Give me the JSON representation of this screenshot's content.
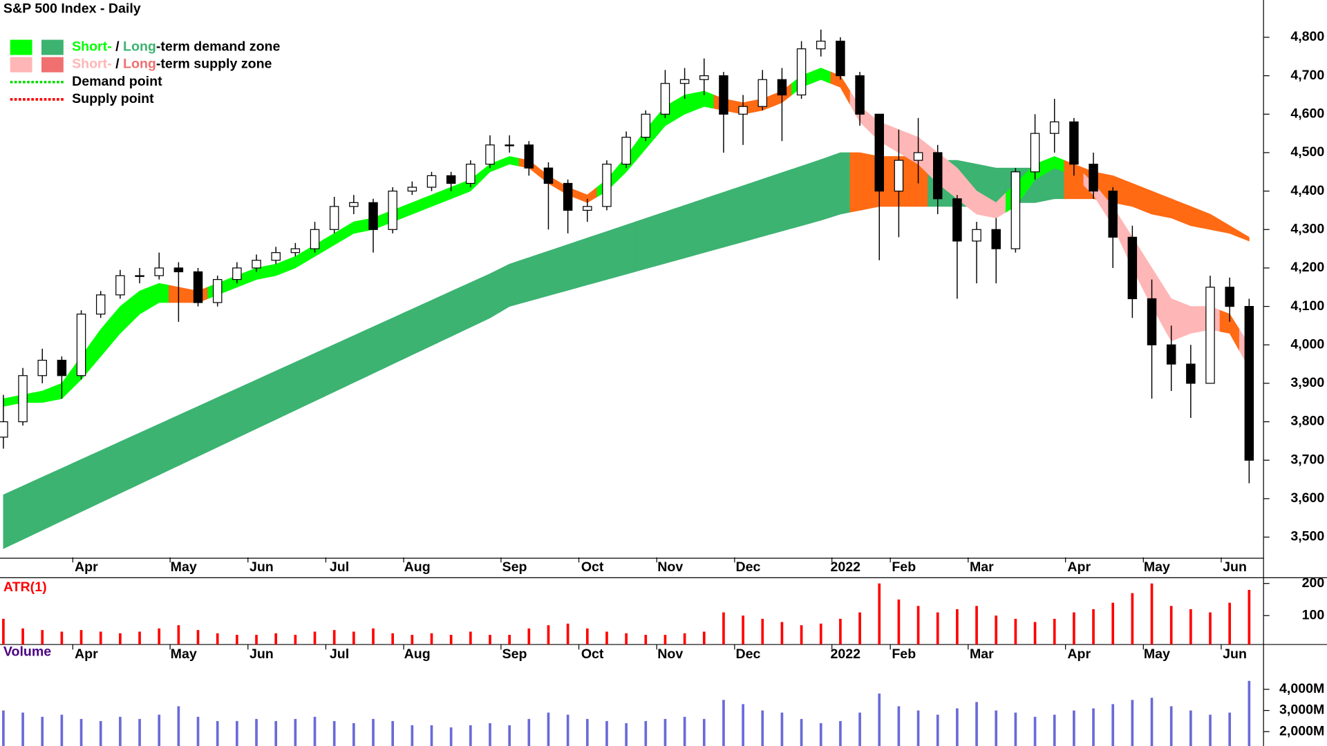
{
  "chart_data": [
    {
      "type": "candlestick",
      "title": "S&P 500 Index - Daily",
      "categories": [
        null,
        null,
        null,
        null,
        "Apr",
        null,
        null,
        null,
        null,
        "May",
        null,
        null,
        null,
        "Jun",
        null,
        null,
        null,
        "Jul",
        null,
        null,
        null,
        "Aug",
        null,
        null,
        null,
        null,
        "Sep",
        null,
        null,
        null,
        "Oct",
        null,
        null,
        null,
        "Nov",
        null,
        null,
        null,
        "Dec",
        null,
        null,
        null,
        null,
        "2022",
        null,
        null,
        "Feb",
        null,
        null,
        null,
        "Mar",
        null,
        null,
        null,
        null,
        "Apr",
        null,
        null,
        null,
        "May",
        null,
        null,
        null,
        "Jun",
        null
      ],
      "open": [
        3760,
        3800,
        3920,
        3960,
        3920,
        4080,
        4130,
        4180,
        4180,
        4200,
        4190,
        4110,
        4170,
        4200,
        4220,
        4240,
        4250,
        4300,
        4360,
        4370,
        4300,
        4400,
        4410,
        4440,
        4420,
        4470,
        4520,
        4520,
        4460,
        4420,
        4350,
        4360,
        4470,
        4540,
        4600,
        4680,
        4690,
        4700,
        4600,
        4620,
        4690,
        4650,
        4770,
        4790,
        4700,
        4600,
        4400,
        4480,
        4500,
        4380,
        4270,
        4300,
        4250,
        4450,
        4550,
        4580,
        4470,
        4400,
        4280,
        4120,
        4000,
        3950,
        3900,
        4150,
        4100
      ],
      "high": [
        3870,
        3940,
        3990,
        3970,
        4090,
        4140,
        4195,
        4200,
        4240,
        4215,
        4200,
        4180,
        4215,
        4235,
        4255,
        4265,
        4320,
        4385,
        4390,
        4380,
        4410,
        4425,
        4450,
        4450,
        4480,
        4545,
        4545,
        4530,
        4475,
        4430,
        4380,
        4480,
        4555,
        4610,
        4715,
        4720,
        4745,
        4710,
        4650,
        4715,
        4720,
        4790,
        4820,
        4800,
        4710,
        4600,
        4560,
        4590,
        4520,
        4390,
        4320,
        4330,
        4460,
        4600,
        4640,
        4590,
        4500,
        4410,
        4310,
        4170,
        4050,
        4000,
        4180,
        4175,
        4120
      ],
      "low": [
        3730,
        3790,
        3900,
        3860,
        3910,
        4070,
        4120,
        4160,
        4170,
        4060,
        4100,
        4100,
        4160,
        4190,
        4210,
        4230,
        4240,
        4290,
        4340,
        4240,
        4290,
        4390,
        4400,
        4400,
        4410,
        4460,
        4500,
        4440,
        4300,
        4290,
        4320,
        4350,
        4460,
        4530,
        4590,
        4640,
        4650,
        4500,
        4520,
        4610,
        4530,
        4640,
        4750,
        4690,
        4570,
        4220,
        4280,
        4420,
        4340,
        4120,
        4160,
        4160,
        4240,
        4430,
        4500,
        4440,
        4380,
        4200,
        4070,
        3860,
        3880,
        3810,
        3900,
        4060,
        3640
      ],
      "close": [
        3800,
        3920,
        3960,
        3920,
        4080,
        4130,
        4180,
        4180,
        4200,
        4190,
        4110,
        4170,
        4200,
        4220,
        4240,
        4250,
        4300,
        4360,
        4370,
        4300,
        4400,
        4410,
        4440,
        4420,
        4470,
        4520,
        4520,
        4460,
        4420,
        4350,
        4360,
        4470,
        4540,
        4600,
        4680,
        4690,
        4700,
        4600,
        4620,
        4690,
        4650,
        4770,
        4790,
        4700,
        4600,
        4400,
        4480,
        4500,
        4380,
        4270,
        4300,
        4250,
        4450,
        4550,
        4580,
        4470,
        4400,
        4280,
        4120,
        4000,
        3950,
        3900,
        4150,
        4100,
        3700
      ],
      "up_color": "#ffffff",
      "down_color": "#000000",
      "zones": [
        {
          "upper": [
            3610,
            3633,
            3656,
            3679,
            3702,
            3725,
            3748,
            3771,
            3794,
            3817,
            3840,
            3863,
            3886,
            3909,
            3932,
            3955,
            3978,
            4001,
            4024,
            4047,
            4070,
            4093,
            4116,
            4139,
            4162,
            4185,
            4210,
            4227,
            4244,
            4261,
            4278,
            4295,
            4312,
            4329,
            4346,
            4363,
            4380,
            4397,
            4414,
            4431,
            4448,
            4465,
            4482,
            4500,
            4500,
            4490,
            4490,
            4490,
            4480,
            4480,
            4470,
            4460,
            4460,
            4460,
            4470,
            4470,
            4450,
            4440,
            4420,
            4400,
            4380,
            4360,
            4340,
            4310,
            4280
          ],
          "lower": [
            3470,
            3494,
            3518,
            3542,
            3566,
            3590,
            3614,
            3638,
            3662,
            3686,
            3710,
            3734,
            3758,
            3782,
            3806,
            3830,
            3854,
            3878,
            3902,
            3926,
            3950,
            3974,
            3998,
            4022,
            4046,
            4070,
            4100,
            4114,
            4128,
            4142,
            4156,
            4170,
            4184,
            4198,
            4212,
            4226,
            4240,
            4254,
            4268,
            4282,
            4296,
            4310,
            4324,
            4340,
            4350,
            4360,
            4360,
            4360,
            4360,
            4360,
            4360,
            4360,
            4370,
            4370,
            4380,
            4380,
            4380,
            4370,
            4360,
            4340,
            4330,
            4310,
            4300,
            4290,
            4270
          ],
          "colors": [
            "#3cb371",
            "#3cb371",
            "#3cb371",
            "#3cb371",
            "#3cb371",
            "#3cb371",
            "#3cb371",
            "#3cb371",
            "#3cb371",
            "#3cb371",
            "#3cb371",
            "#3cb371",
            "#3cb371",
            "#3cb371",
            "#3cb371",
            "#3cb371",
            "#3cb371",
            "#3cb371",
            "#3cb371",
            "#3cb371",
            "#3cb371",
            "#3cb371",
            "#3cb371",
            "#3cb371",
            "#3cb371",
            "#3cb371",
            "#3cb371",
            "#3cb371",
            "#3cb371",
            "#3cb371",
            "#3cb371",
            "#3cb371",
            "#3cb371",
            "#3cb371",
            "#3cb371",
            "#3cb371",
            "#3cb371",
            "#3cb371",
            "#3cb371",
            "#3cb371",
            "#3cb371",
            "#3cb371",
            "#3cb371",
            "#3cb371",
            "#ff6a13",
            "#ff6a13",
            "#ff6a13",
            "#ff6a13",
            "#3cb371",
            "#3cb371",
            "#3cb371",
            "#3cb371",
            "#3cb371",
            "#3cb371",
            "#3cb371",
            "#ff6a13",
            "#ff6a13",
            "#ff6a13",
            "#ff6a13",
            "#ff6a13",
            "#ff6a13",
            "#ff6a13",
            "#ff6a13",
            "#ff6a13",
            "#ff6a13"
          ]
        },
        {
          "upper": [
            3860,
            3870,
            3880,
            3900,
            3970,
            4040,
            4100,
            4140,
            4160,
            4150,
            4140,
            4160,
            4180,
            4200,
            4210,
            4230,
            4260,
            4290,
            4320,
            4330,
            4350,
            4370,
            4390,
            4410,
            4430,
            4470,
            4490,
            4480,
            4440,
            4410,
            4390,
            4430,
            4490,
            4560,
            4620,
            4650,
            4660,
            4640,
            4630,
            4640,
            4660,
            4700,
            4720,
            4700,
            4620,
            4580,
            4560,
            4540,
            4500,
            4460,
            4400,
            4370,
            4420,
            4470,
            4490,
            4470,
            4420,
            4360,
            4280,
            4200,
            4120,
            4100,
            4100,
            4080,
            4000
          ],
          "lower": [
            3840,
            3850,
            3850,
            3860,
            3910,
            3970,
            4030,
            4080,
            4110,
            4110,
            4110,
            4130,
            4150,
            4170,
            4180,
            4200,
            4230,
            4260,
            4290,
            4300,
            4320,
            4340,
            4360,
            4380,
            4400,
            4450,
            4470,
            4460,
            4420,
            4390,
            4370,
            4400,
            4450,
            4510,
            4570,
            4600,
            4620,
            4610,
            4600,
            4610,
            4630,
            4670,
            4690,
            4670,
            4580,
            4530,
            4500,
            4470,
            4420,
            4380,
            4340,
            4330,
            4360,
            4430,
            4460,
            4440,
            4390,
            4310,
            4200,
            4100,
            4010,
            4030,
            4040,
            4030,
            3940
          ],
          "colors": [
            "#00ff00",
            "#00ff00",
            "#00ff00",
            "#00ff00",
            "#00ff00",
            "#00ff00",
            "#00ff00",
            "#00ff00",
            "#00ff00",
            "#ff6a13",
            "#ff6a13",
            "#00ff00",
            "#00ff00",
            "#00ff00",
            "#00ff00",
            "#00ff00",
            "#00ff00",
            "#00ff00",
            "#00ff00",
            "#00ff00",
            "#00ff00",
            "#00ff00",
            "#00ff00",
            "#00ff00",
            "#00ff00",
            "#00ff00",
            "#00ff00",
            "#ff6a13",
            "#ff6a13",
            "#ff6a13",
            "#ff6a13",
            "#00ff00",
            "#00ff00",
            "#00ff00",
            "#00ff00",
            "#00ff00",
            "#00ff00",
            "#ff6a13",
            "#ff6a13",
            "#ff6a13",
            "#ff6a13",
            "#00ff00",
            "#00ff00",
            "#ff6a13",
            "#ffb6b6",
            "#ffb6b6",
            "#ffb6b6",
            "#ffb6b6",
            "#ffb6b6",
            "#ffb6b6",
            "#ffb6b6",
            "#ffb6b6",
            "#00ff00",
            "#00ff00",
            "#00ff00",
            "#ff6a13",
            "#ffb6b6",
            "#ffb6b6",
            "#ffb6b6",
            "#ffb6b6",
            "#ffb6b6",
            "#ffb6b6",
            "#ffb6b6",
            "#ff6a13",
            "#ffb6b6"
          ]
        }
      ],
      "legend": [
        {
          "swatches": [
            "#00ff00",
            "#3cb371"
          ],
          "text": [
            "Short-",
            " / ",
            "Long",
            "-term demand zone"
          ]
        },
        {
          "swatches": [
            "#ffb6b6",
            "#f07070"
          ],
          "text": [
            "Short-",
            " / ",
            "Long",
            "-term supply zone"
          ]
        },
        {
          "line": "#00dd00",
          "text": [
            "Demand point"
          ]
        },
        {
          "line": "#ff0000",
          "text": [
            "Supply point"
          ]
        }
      ],
      "ylim": [
        3445,
        4897
      ],
      "yticks": [
        {
          "value": 3500,
          "label": "3,500"
        },
        {
          "value": 3600,
          "label": "3,600"
        },
        {
          "value": 3700,
          "label": "3,700"
        },
        {
          "value": 3800,
          "label": "3,800"
        },
        {
          "value": 3900,
          "label": "3,900"
        },
        {
          "value": 4000,
          "label": "4,000"
        },
        {
          "value": 4100,
          "label": "4,100"
        },
        {
          "value": 4200,
          "label": "4,200"
        },
        {
          "value": 4300,
          "label": "4,300"
        },
        {
          "value": 4400,
          "label": "4,400"
        },
        {
          "value": 4500,
          "label": "4,500"
        },
        {
          "value": 4600,
          "label": "4,600"
        },
        {
          "value": 4700,
          "label": "4,700"
        },
        {
          "value": 4800,
          "label": "4,800"
        }
      ]
    },
    {
      "type": "bar",
      "title": "ATR(1)",
      "title_color": "#ff0000",
      "color": "#ff0000",
      "categories": [
        null,
        null,
        null,
        null,
        "Apr",
        null,
        null,
        null,
        null,
        "May",
        null,
        null,
        null,
        "Jun",
        null,
        null,
        null,
        "Jul",
        null,
        null,
        null,
        "Aug",
        null,
        null,
        null,
        null,
        "Sep",
        null,
        null,
        null,
        "Oct",
        null,
        null,
        null,
        "Nov",
        null,
        null,
        null,
        "Dec",
        null,
        null,
        null,
        null,
        "2022",
        null,
        null,
        "Feb",
        null,
        null,
        null,
        "Mar",
        null,
        null,
        null,
        null,
        "Apr",
        null,
        null,
        null,
        "May",
        null,
        null,
        null,
        "Jun",
        null
      ],
      "values": [
        90,
        60,
        55,
        50,
        55,
        50,
        45,
        50,
        60,
        70,
        55,
        45,
        40,
        40,
        45,
        40,
        50,
        55,
        50,
        60,
        45,
        40,
        45,
        40,
        50,
        40,
        40,
        60,
        70,
        75,
        60,
        50,
        45,
        40,
        40,
        45,
        50,
        110,
        100,
        90,
        80,
        70,
        75,
        90,
        110,
        200,
        150,
        130,
        110,
        120,
        130,
        100,
        90,
        80,
        90,
        110,
        120,
        140,
        170,
        200,
        130,
        120,
        110,
        140,
        180
      ],
      "ylim": [
        10,
        218
      ],
      "yticks": [
        100,
        200
      ]
    },
    {
      "type": "bar",
      "title": "Volume",
      "title_color": "#4b0082",
      "color": "#6a6ad8",
      "values": [
        3000,
        2900,
        2700,
        2800,
        2600,
        2500,
        2700,
        2600,
        2800,
        3200,
        2700,
        2500,
        2500,
        2600,
        2500,
        2600,
        2700,
        2500,
        2400,
        2600,
        2500,
        2300,
        2300,
        2200,
        2300,
        2400,
        2300,
        2600,
        2900,
        2800,
        2600,
        2500,
        2400,
        2500,
        2600,
        2700,
        2600,
        3500,
        3300,
        3000,
        2900,
        2600,
        2400,
        2500,
        2900,
        3800,
        3200,
        3000,
        2800,
        3100,
        3400,
        3000,
        2900,
        2700,
        2800,
        3000,
        3100,
        3300,
        3500,
        3600,
        3200,
        3000,
        2800,
        2900,
        4400
      ],
      "ylim": [
        1320,
        6120
      ],
      "yticks": [
        {
          "value": 2000,
          "label": "2,000M"
        },
        {
          "value": 3000,
          "label": "3,000M"
        },
        {
          "value": 4000,
          "label": "4,000M"
        }
      ]
    }
  ]
}
